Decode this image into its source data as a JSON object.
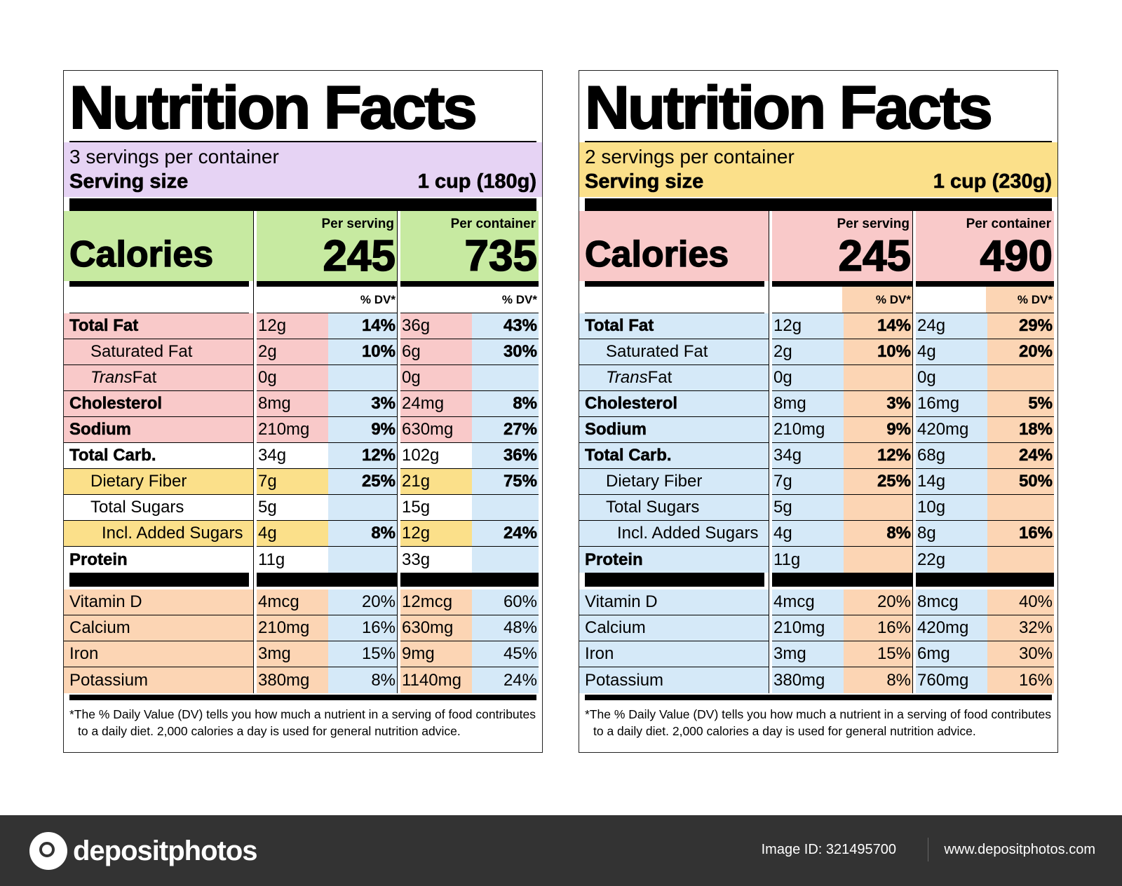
{
  "labels": [
    {
      "title": "Nutrition Facts",
      "servings_per_container": "3 servings per container",
      "serving_size_label": "Serving size",
      "serving_size_value": "1 cup (180g)",
      "calories_label": "Calories",
      "per_serving_label": "Per serving",
      "per_container_label": "Per container",
      "calories_per_serving": "245",
      "calories_per_container": "735",
      "dv_header": "% DV*",
      "colors": {
        "serving": "#e6d3f4",
        "calories": "#c7eaa1",
        "fat_group": "#f9c9c9",
        "fiber_group": "#fbe08a",
        "vitamins": "#fcd5b4",
        "dv_column": "#d5e9f8",
        "default": "#ffffff"
      },
      "nutrients": [
        {
          "name": "Total Fat",
          "style": "bold",
          "indent": 0,
          "group": "fat_group",
          "serving_amount": "12g",
          "serving_dv": "14%",
          "container_amount": "36g",
          "container_dv": "43%"
        },
        {
          "name": "Saturated Fat",
          "style": "normal",
          "indent": 1,
          "group": "fat_group",
          "serving_amount": "2g",
          "serving_dv": "10%",
          "container_amount": "6g",
          "container_dv": "30%"
        },
        {
          "name_italic": "Trans",
          "name": " Fat",
          "style": "normal",
          "indent": 1,
          "group": "fat_group",
          "serving_amount": "0g",
          "serving_dv": "",
          "container_amount": "0g",
          "container_dv": ""
        },
        {
          "name": "Cholesterol",
          "style": "bold",
          "indent": 0,
          "group": "fat_group",
          "serving_amount": "8mg",
          "serving_dv": "3%",
          "container_amount": "24mg",
          "container_dv": "8%"
        },
        {
          "name": "Sodium",
          "style": "bold",
          "indent": 0,
          "group": "fat_group",
          "serving_amount": "210mg",
          "serving_dv": "9%",
          "container_amount": "630mg",
          "container_dv": "27%"
        },
        {
          "name": "Total Carb.",
          "style": "bold",
          "indent": 0,
          "group": "default",
          "serving_amount": "34g",
          "serving_dv": "12%",
          "container_amount": "102g",
          "container_dv": "36%"
        },
        {
          "name": "Dietary Fiber",
          "style": "normal",
          "indent": 1,
          "group": "fiber_group",
          "serving_amount": "7g",
          "serving_dv": "25%",
          "container_amount": "21g",
          "container_dv": "75%"
        },
        {
          "name": "Total Sugars",
          "style": "normal",
          "indent": 1,
          "group": "default",
          "serving_amount": "5g",
          "serving_dv": "",
          "container_amount": "15g",
          "container_dv": ""
        },
        {
          "name": "Incl. Added Sugars",
          "style": "normal",
          "indent": 2,
          "group": "fiber_group",
          "serving_amount": "4g",
          "serving_dv": "8%",
          "container_amount": "12g",
          "container_dv": "24%"
        },
        {
          "name": "Protein",
          "style": "bold",
          "indent": 0,
          "group": "default",
          "serving_amount": "11g",
          "serving_dv": "",
          "container_amount": "33g",
          "container_dv": ""
        }
      ],
      "vitamins": [
        {
          "name": "Vitamin D",
          "serving_amount": "4mcg",
          "serving_dv": "20%",
          "container_amount": "12mcg",
          "container_dv": "60%"
        },
        {
          "name": "Calcium",
          "serving_amount": "210mg",
          "serving_dv": "16%",
          "container_amount": "630mg",
          "container_dv": "48%"
        },
        {
          "name": "Iron",
          "serving_amount": "3mg",
          "serving_dv": "15%",
          "container_amount": "9mg",
          "container_dv": "45%"
        },
        {
          "name": "Potassium",
          "serving_amount": "380mg",
          "serving_dv": "8%",
          "container_amount": "1140mg",
          "container_dv": "24%"
        }
      ],
      "footnote": "*The % Daily Value (DV) tells you how much a nutrient in a serving of food contributes to a daily diet. 2,000 calories a day is used for general nutrition advice."
    },
    {
      "title": "Nutrition Facts",
      "servings_per_container": "2 servings per container",
      "serving_size_label": "Serving size",
      "serving_size_value": "1 cup (230g)",
      "calories_label": "Calories",
      "per_serving_label": "Per serving",
      "per_container_label": "Per container",
      "calories_per_serving": "245",
      "calories_per_container": "490",
      "dv_header": "% DV*",
      "colors": {
        "serving": "#fbe08a",
        "calories": "#f9c9c9",
        "fat_group": "#d5e9f8",
        "fiber_group": "#d5e9f8",
        "vitamins": "#d5e9f8",
        "dv_column": "#fcd5b4",
        "default": "#d5e9f8"
      },
      "nutrients": [
        {
          "name": "Total Fat",
          "style": "bold",
          "indent": 0,
          "group": "default",
          "serving_amount": "12g",
          "serving_dv": "14%",
          "container_amount": "24g",
          "container_dv": "29%"
        },
        {
          "name": "Saturated Fat",
          "style": "normal",
          "indent": 1,
          "group": "default",
          "serving_amount": "2g",
          "serving_dv": "10%",
          "container_amount": "4g",
          "container_dv": "20%"
        },
        {
          "name_italic": "Trans",
          "name": " Fat",
          "style": "normal",
          "indent": 1,
          "group": "default",
          "serving_amount": "0g",
          "serving_dv": "",
          "container_amount": "0g",
          "container_dv": ""
        },
        {
          "name": "Cholesterol",
          "style": "bold",
          "indent": 0,
          "group": "default",
          "serving_amount": "8mg",
          "serving_dv": "3%",
          "container_amount": "16mg",
          "container_dv": "5%"
        },
        {
          "name": "Sodium",
          "style": "bold",
          "indent": 0,
          "group": "default",
          "serving_amount": "210mg",
          "serving_dv": "9%",
          "container_amount": "420mg",
          "container_dv": "18%"
        },
        {
          "name": "Total Carb.",
          "style": "bold",
          "indent": 0,
          "group": "default",
          "serving_amount": "34g",
          "serving_dv": "12%",
          "container_amount": "68g",
          "container_dv": "24%"
        },
        {
          "name": "Dietary Fiber",
          "style": "normal",
          "indent": 1,
          "group": "default",
          "serving_amount": "7g",
          "serving_dv": "25%",
          "container_amount": "14g",
          "container_dv": "50%"
        },
        {
          "name": "Total Sugars",
          "style": "normal",
          "indent": 1,
          "group": "default",
          "serving_amount": "5g",
          "serving_dv": "",
          "container_amount": "10g",
          "container_dv": ""
        },
        {
          "name": "Incl. Added Sugars",
          "style": "normal",
          "indent": 2,
          "group": "default",
          "serving_amount": "4g",
          "serving_dv": "8%",
          "container_amount": "8g",
          "container_dv": "16%"
        },
        {
          "name": "Protein",
          "style": "bold",
          "indent": 0,
          "group": "default",
          "serving_amount": "11g",
          "serving_dv": "",
          "container_amount": "22g",
          "container_dv": ""
        }
      ],
      "vitamins": [
        {
          "name": "Vitamin D",
          "serving_amount": "4mcg",
          "serving_dv": "20%",
          "container_amount": "8mcg",
          "container_dv": "40%"
        },
        {
          "name": "Calcium",
          "serving_amount": "210mg",
          "serving_dv": "16%",
          "container_amount": "420mg",
          "container_dv": "32%"
        },
        {
          "name": "Iron",
          "serving_amount": "3mg",
          "serving_dv": "15%",
          "container_amount": "6mg",
          "container_dv": "30%"
        },
        {
          "name": "Potassium",
          "serving_amount": "380mg",
          "serving_dv": "8%",
          "container_amount": "760mg",
          "container_dv": "16%"
        }
      ],
      "footnote": "*The % Daily Value (DV) tells you how much a nutrient in a serving of food contributes to a daily diet. 2,000 calories a day is used for general nutrition advice."
    }
  ],
  "footer_band": {
    "brand": "depositphotos",
    "brand_icon": "camera-icon",
    "image_id": "Image ID: 321495700",
    "website": "www.depositphotos.com"
  }
}
